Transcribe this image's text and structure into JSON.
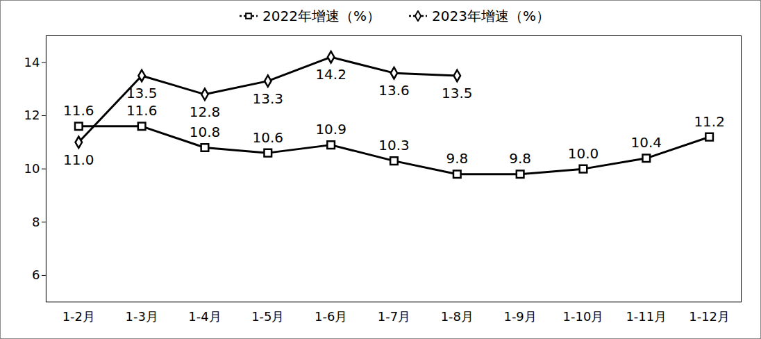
{
  "chart_data": {
    "type": "line",
    "categories": [
      "1-2月",
      "1-3月",
      "1-4月",
      "1-5月",
      "1-6月",
      "1-7月",
      "1-8月",
      "1-9月",
      "1-10月",
      "1-11月",
      "1-12月"
    ],
    "series": [
      {
        "name": "2022年增速（%）",
        "color": "#000000",
        "marker": "square",
        "line_style": "solid",
        "values": [
          11.6,
          11.6,
          10.8,
          10.6,
          10.9,
          10.3,
          9.8,
          9.8,
          10.0,
          10.4,
          11.2
        ],
        "value_labels": [
          "11.6",
          "11.6",
          "10.8",
          "10.6",
          "10.9",
          "10.3",
          "9.8",
          "9.8",
          "10.0",
          "10.4",
          "11.2"
        ]
      },
      {
        "name": "2023年增速（%）",
        "color": "#000000",
        "marker": "diamond",
        "line_style": "solid",
        "values": [
          11.0,
          13.5,
          12.8,
          13.3,
          14.2,
          13.6,
          13.5,
          null,
          null,
          null,
          null
        ],
        "value_labels": [
          "11.0",
          "13.5",
          "12.8",
          "13.3",
          "14.2",
          "13.6",
          "13.5",
          null,
          null,
          null,
          null
        ]
      }
    ],
    "ylim": [
      5,
      15
    ],
    "yticks": [
      6,
      8,
      10,
      12,
      14
    ],
    "grid": false,
    "legend": "top",
    "data_labels": true
  }
}
